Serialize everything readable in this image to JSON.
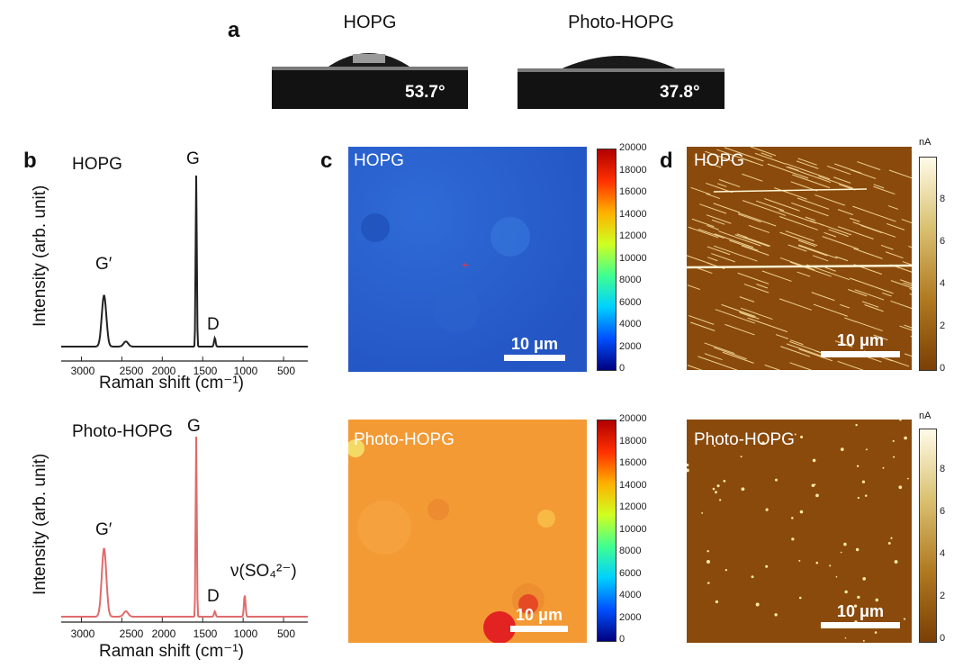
{
  "figure": {
    "panel_a": {
      "letter": "a",
      "samples": [
        {
          "name": "HOPG",
          "contact_angle": "53.7°"
        },
        {
          "name": "Photo-HOPG",
          "contact_angle": "37.8°"
        }
      ]
    },
    "panel_b": {
      "letter": "b",
      "spectra": [
        {
          "sample": "HOPG",
          "peaks": {
            "g_prime": "G′",
            "g": "G",
            "d": "D"
          },
          "ylabel": "Intensity (arb. unit)",
          "xlabel": "Raman shift (cm⁻¹)",
          "color": "#222222"
        },
        {
          "sample": "Photo-HOPG",
          "peaks": {
            "g_prime": "G′",
            "g": "G",
            "d": "D",
            "sulfate": "ν(SO₄²⁻)"
          },
          "ylabel": "Intensity (arb. unit)",
          "xlabel": "Raman shift (cm⁻¹)",
          "color": "#e06b6b"
        }
      ],
      "xticks": [
        "3000",
        "2500",
        "2000",
        "1500",
        "1000",
        "500"
      ]
    },
    "panel_c": {
      "letter": "c",
      "maps": [
        {
          "label": "HOPG",
          "scale": "10 μm"
        },
        {
          "label": "Photo-HOPG",
          "scale": "10 μm"
        }
      ],
      "colorbar_ticks": [
        "20000",
        "18000",
        "16000",
        "14000",
        "12000",
        "10000",
        "8000",
        "6000",
        "4000",
        "2000",
        "0"
      ]
    },
    "panel_d": {
      "letter": "d",
      "maps": [
        {
          "label": "HOPG",
          "scale": "10 μm"
        },
        {
          "label": "Photo-HOPG",
          "scale": "10 μm"
        }
      ],
      "colorbar_unit": "nA",
      "colorbar_ticks": [
        "8",
        "6",
        "4",
        "2",
        "0"
      ]
    }
  },
  "chart_data": [
    {
      "type": "line",
      "title": "HOPG",
      "xlabel": "Raman shift (cm⁻¹)",
      "ylabel": "Intensity (arb. unit)",
      "xlim": [
        3250,
        200
      ],
      "series": [
        {
          "name": "HOPG",
          "peaks": [
            {
              "x": 2720,
              "y": 0.3
            },
            {
              "x": 2450,
              "y": 0.03
            },
            {
              "x": 1580,
              "y": 1.0
            },
            {
              "x": 1350,
              "y": 0.05
            }
          ]
        }
      ]
    },
    {
      "type": "line",
      "title": "Photo-HOPG",
      "xlabel": "Raman shift (cm⁻¹)",
      "ylabel": "Intensity (arb. unit)",
      "xlim": [
        3250,
        200
      ],
      "series": [
        {
          "name": "Photo-HOPG",
          "peaks": [
            {
              "x": 2720,
              "y": 0.38
            },
            {
              "x": 2450,
              "y": 0.03
            },
            {
              "x": 1580,
              "y": 1.0
            },
            {
              "x": 1350,
              "y": 0.03
            },
            {
              "x": 980,
              "y": 0.12
            }
          ]
        }
      ]
    }
  ]
}
